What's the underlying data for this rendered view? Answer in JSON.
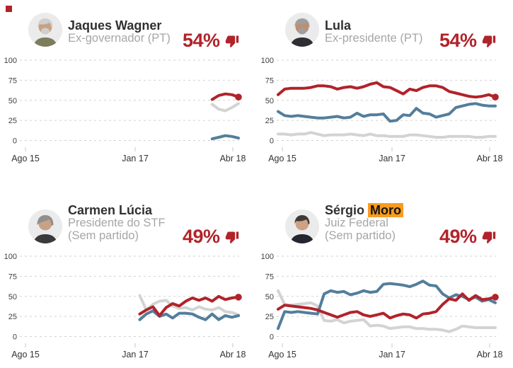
{
  "page": {
    "marker_color": "#b1232a",
    "background": "#ffffff"
  },
  "colors": {
    "red_line": "#b1232a",
    "blue_line": "#537e9c",
    "gray_line": "#d3d3d3",
    "grid": "#d2d2d2",
    "name_text": "#303030",
    "subtitle_text": "#a6a6a6",
    "percent_text": "#b1232a",
    "highlight_bg": "#f99b1f"
  },
  "panels": [
    {
      "name_prefix": "Jaques Wagner",
      "name_highlight": "",
      "subtitle_lines": [
        "Ex-governador (PT)"
      ],
      "value": "54%",
      "value_icon": "thumb-down-icon",
      "avatar": {
        "hair": "#cfcfcf",
        "skin": "#c8a182",
        "suit": "#7d7d5e",
        "beard": true
      }
    },
    {
      "name_prefix": "Lula",
      "name_highlight": "",
      "subtitle_lines": [
        "Ex-presidente (PT)"
      ],
      "value": "54%",
      "value_icon": "thumb-down-icon",
      "avatar": {
        "hair": "#9e9e9e",
        "skin": "#bd8f70",
        "suit": "#2e2e33",
        "beard": true
      }
    },
    {
      "name_prefix": "Carmen Lúcia",
      "name_highlight": "",
      "subtitle_lines": [
        "Presidente do STF",
        "(Sem partido)"
      ],
      "value": "49%",
      "value_icon": "thumb-down-icon",
      "avatar": {
        "hair": "#8f8f8f",
        "skin": "#c9a184",
        "suit": "#3a3a3a",
        "beard": false
      }
    },
    {
      "name_prefix": "Sérgio",
      "name_highlight": "Moro",
      "subtitle_lines": [
        "Juiz Federal",
        "(Sem partido)"
      ],
      "value": "49%",
      "value_icon": "thumb-down-icon",
      "avatar": {
        "hair": "#3f3a36",
        "skin": "#cfa184",
        "suit": "#23262e",
        "beard": false
      }
    }
  ],
  "chart_data": [
    {
      "type": "line",
      "title": "Jaques Wagner",
      "x_tick_labels": [
        "Ago 15",
        "Jan 17",
        "Abr 18"
      ],
      "y_ticks": [
        0,
        25,
        50,
        75,
        100
      ],
      "ylim": [
        0,
        100
      ],
      "grid": true,
      "legend": "none",
      "series": [
        {
          "name": "gray-line",
          "color": "#d3d3d3",
          "end_dot": false,
          "values": [
            null,
            null,
            null,
            null,
            null,
            null,
            null,
            null,
            null,
            null,
            null,
            null,
            null,
            null,
            null,
            null,
            null,
            null,
            null,
            null,
            null,
            null,
            null,
            null,
            null,
            null,
            null,
            null,
            null,
            45,
            39,
            37,
            41,
            46
          ]
        },
        {
          "name": "blue-line",
          "color": "#537e9c",
          "end_dot": false,
          "values": [
            null,
            null,
            null,
            null,
            null,
            null,
            null,
            null,
            null,
            null,
            null,
            null,
            null,
            null,
            null,
            null,
            null,
            null,
            null,
            null,
            null,
            null,
            null,
            null,
            null,
            null,
            null,
            null,
            null,
            2,
            4,
            6,
            5,
            3
          ]
        },
        {
          "name": "red-line",
          "color": "#b1232a",
          "end_dot": true,
          "values": [
            null,
            null,
            null,
            null,
            null,
            null,
            null,
            null,
            null,
            null,
            null,
            null,
            null,
            null,
            null,
            null,
            null,
            null,
            null,
            null,
            null,
            null,
            null,
            null,
            null,
            null,
            null,
            null,
            null,
            51,
            56,
            58,
            57,
            54
          ]
        }
      ]
    },
    {
      "type": "line",
      "title": "Lula",
      "x_tick_labels": [
        "Ago 15",
        "Jan 17",
        "Abr 18"
      ],
      "y_ticks": [
        0,
        25,
        50,
        75,
        100
      ],
      "ylim": [
        0,
        100
      ],
      "grid": true,
      "legend": "none",
      "series": [
        {
          "name": "gray-line",
          "color": "#d3d3d3",
          "end_dot": false,
          "values": [
            8,
            8,
            7,
            8,
            8,
            10,
            8,
            6,
            7,
            7,
            7,
            8,
            7,
            6,
            8,
            6,
            6,
            5,
            5,
            5,
            7,
            7,
            6,
            5,
            4,
            4,
            5,
            5,
            5,
            5,
            4,
            4,
            5,
            5
          ]
        },
        {
          "name": "blue-line",
          "color": "#537e9c",
          "end_dot": false,
          "values": [
            36,
            31,
            30,
            31,
            30,
            29,
            28,
            28,
            29,
            30,
            28,
            29,
            34,
            30,
            32,
            32,
            33,
            24,
            25,
            32,
            31,
            40,
            34,
            33,
            29,
            31,
            33,
            41,
            43,
            45,
            46,
            44,
            43,
            43
          ]
        },
        {
          "name": "red-line",
          "color": "#b1232a",
          "end_dot": true,
          "values": [
            57,
            64,
            65,
            65,
            65,
            66,
            68,
            68,
            67,
            64,
            66,
            67,
            65,
            67,
            70,
            72,
            67,
            66,
            62,
            58,
            64,
            62,
            66,
            68,
            68,
            66,
            61,
            59,
            57,
            55,
            54,
            55,
            57,
            54
          ]
        }
      ]
    },
    {
      "type": "line",
      "title": "Carmen Lúcia",
      "x_tick_labels": [
        "Ago 15",
        "Jan 17",
        "Abr 18"
      ],
      "y_ticks": [
        0,
        25,
        50,
        75,
        100
      ],
      "ylim": [
        0,
        100
      ],
      "grid": true,
      "legend": "none",
      "series": [
        {
          "name": "gray-line",
          "color": "#d3d3d3",
          "end_dot": false,
          "values": [
            null,
            null,
            null,
            null,
            null,
            null,
            null,
            null,
            null,
            null,
            null,
            null,
            null,
            null,
            null,
            null,
            null,
            null,
            51,
            33,
            40,
            44,
            45,
            38,
            35,
            36,
            33,
            37,
            34,
            33,
            36,
            31,
            30,
            27
          ]
        },
        {
          "name": "blue-line",
          "color": "#537e9c",
          "end_dot": false,
          "values": [
            null,
            null,
            null,
            null,
            null,
            null,
            null,
            null,
            null,
            null,
            null,
            null,
            null,
            null,
            null,
            null,
            null,
            null,
            21,
            28,
            32,
            25,
            28,
            23,
            29,
            29,
            28,
            24,
            21,
            28,
            21,
            26,
            24,
            26
          ]
        },
        {
          "name": "red-line",
          "color": "#b1232a",
          "end_dot": true,
          "values": [
            null,
            null,
            null,
            null,
            null,
            null,
            null,
            null,
            null,
            null,
            null,
            null,
            null,
            null,
            null,
            null,
            null,
            null,
            28,
            33,
            37,
            26,
            36,
            41,
            38,
            44,
            48,
            45,
            48,
            44,
            50,
            46,
            48,
            49
          ]
        }
      ]
    },
    {
      "type": "line",
      "title": "Sérgio Moro",
      "x_tick_labels": [
        "Ago 15",
        "Jan 17",
        "Abr 18"
      ],
      "y_ticks": [
        0,
        25,
        50,
        75,
        100
      ],
      "ylim": [
        0,
        100
      ],
      "grid": true,
      "legend": "none",
      "series": [
        {
          "name": "gray-line",
          "color": "#d3d3d3",
          "end_dot": false,
          "values": [
            57,
            40,
            39,
            40,
            41,
            42,
            38,
            20,
            19,
            21,
            17,
            19,
            20,
            21,
            13,
            14,
            13,
            10,
            11,
            12,
            12,
            10,
            10,
            9,
            9,
            8,
            6,
            9,
            13,
            12,
            11,
            11,
            11,
            11
          ]
        },
        {
          "name": "blue-line",
          "color": "#537e9c",
          "end_dot": false,
          "values": [
            10,
            31,
            30,
            31,
            30,
            29,
            28,
            53,
            57,
            55,
            56,
            52,
            54,
            57,
            55,
            56,
            65,
            66,
            65,
            64,
            62,
            65,
            69,
            64,
            63,
            53,
            48,
            52,
            50,
            46,
            49,
            44,
            46,
            42
          ]
        },
        {
          "name": "red-line",
          "color": "#b1232a",
          "end_dot": true,
          "values": [
            34,
            39,
            38,
            37,
            36,
            35,
            33,
            30,
            27,
            24,
            27,
            30,
            31,
            27,
            25,
            27,
            29,
            23,
            26,
            28,
            27,
            23,
            28,
            29,
            31,
            40,
            47,
            45,
            53,
            45,
            51,
            46,
            47,
            49
          ]
        }
      ]
    }
  ]
}
